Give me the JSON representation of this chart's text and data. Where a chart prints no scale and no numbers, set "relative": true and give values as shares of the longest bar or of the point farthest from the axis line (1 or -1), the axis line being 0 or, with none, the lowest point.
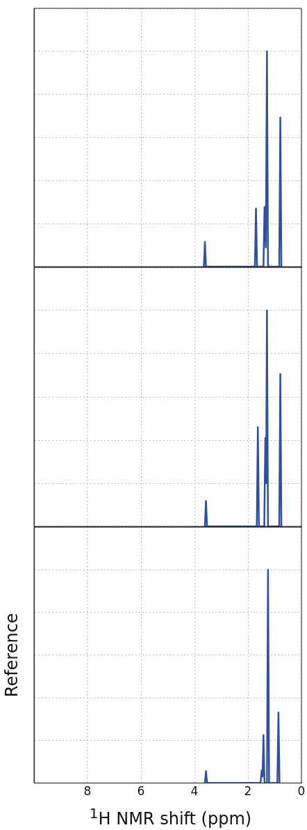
{
  "chart_data": [
    {
      "type": "line",
      "relative": true,
      "xlim": [
        10,
        0
      ],
      "xticks": [
        0,
        2,
        4,
        6,
        8
      ],
      "grid": true,
      "tick_labels": false,
      "series": [
        {
          "color": "#2f4fa2",
          "x": [
            0.75,
            0.79,
            0.83,
            1.25,
            1.29,
            1.33,
            1.38,
            1.42,
            1.66,
            1.7,
            1.74,
            3.57,
            3.61,
            3.65
          ],
          "values": [
            0,
            0.693,
            0,
            0,
            1,
            0.09,
            0.277,
            0,
            0,
            0.27,
            0,
            0,
            0.115,
            0
          ]
        }
      ]
    },
    {
      "type": "line",
      "relative": true,
      "xlim": [
        10,
        0
      ],
      "xticks": [
        0,
        2,
        4,
        6,
        8
      ],
      "grid": true,
      "tick_labels": false,
      "series": [
        {
          "color": "#2f4fa2",
          "x": [
            0.75,
            0.79,
            0.83,
            1.25,
            1.29,
            1.32,
            1.35,
            1.39,
            1.59,
            1.63,
            1.67,
            3.53,
            3.57,
            3.61
          ],
          "values": [
            0,
            0.706,
            0,
            0,
            1,
            0.2,
            0.41,
            0,
            0,
            0.46,
            0,
            0,
            0.118,
            0
          ]
        }
      ]
    },
    {
      "type": "line",
      "relative": true,
      "xlim": [
        10,
        0
      ],
      "xticks": [
        0,
        2,
        4,
        6,
        8
      ],
      "grid": true,
      "tick_labels": "x",
      "ylabel": "Reference",
      "xlabel": "$^{1}$H NMR shift (ppm)",
      "series": [
        {
          "color": "#2f4fa2",
          "x": [
            0.82,
            0.86,
            0.9,
            1.21,
            1.25,
            1.29,
            1.38,
            1.42,
            1.455,
            1.49,
            1.53,
            3.53,
            3.57,
            3.61
          ],
          "values": [
            0,
            0.331,
            0,
            0,
            1,
            0,
            0,
            0.225,
            0.03,
            0.059,
            0,
            0,
            0.056,
            0
          ]
        }
      ]
    }
  ]
}
